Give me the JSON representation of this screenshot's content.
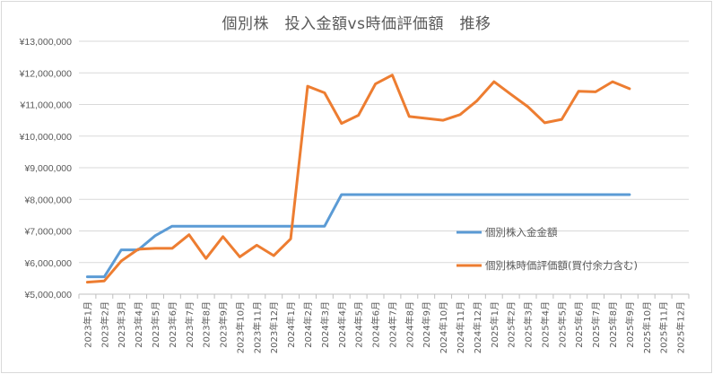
{
  "chart": {
    "title": "個別株　投入金額vs時価評価額　推移"
  },
  "chart_data": {
    "type": "line",
    "title": "個別株　投入金額vs時価評価額　推移",
    "xlabel": "",
    "ylabel": "",
    "ylim": [
      5000000,
      13000000
    ],
    "y_ticks": [
      "¥5,000,000",
      "¥6,000,000",
      "¥7,000,000",
      "¥8,000,000",
      "¥9,000,000",
      "¥10,000,000",
      "¥11,000,000",
      "¥12,000,000",
      "¥13,000,000"
    ],
    "grid": true,
    "legend_position": "inside-right",
    "categories": [
      "2023年1月",
      "2023年2月",
      "2023年3月",
      "2023年4月",
      "2023年5月",
      "2023年6月",
      "2023年7月",
      "2023年8月",
      "2023年9月",
      "2023年10月",
      "2023年11月",
      "2023年12月",
      "2024年1月",
      "2024年2月",
      "2024年3月",
      "2024年4月",
      "2024年5月",
      "2024年6月",
      "2024年7月",
      "2024年8月",
      "2024年9月",
      "2024年10月",
      "2024年11月",
      "2024年12月",
      "2025年1月",
      "2025年2月",
      "2025年3月",
      "2025年4月",
      "2025年5月",
      "2025年6月",
      "2025年7月",
      "2025年8月",
      "2025年9月",
      "2025年10月",
      "2025年11月",
      "2025年12月"
    ],
    "series": [
      {
        "name": "個別株入金金額",
        "color": "#5b9bd5",
        "values": [
          5550000,
          5550000,
          6400000,
          6400000,
          6850000,
          7150000,
          7150000,
          7150000,
          7150000,
          7150000,
          7150000,
          7150000,
          7150000,
          7150000,
          7150000,
          8150000,
          8150000,
          8150000,
          8150000,
          8150000,
          8150000,
          8150000,
          8150000,
          8150000,
          8150000,
          8150000,
          8150000,
          8150000,
          8150000,
          8150000,
          8150000,
          8150000,
          8150000,
          null,
          null,
          null
        ]
      },
      {
        "name": "個別株時価評価額(買付余力含む)",
        "color": "#ed7d31",
        "values": [
          5380000,
          5420000,
          6050000,
          6420000,
          6450000,
          6450000,
          6880000,
          6130000,
          6820000,
          6180000,
          6550000,
          6220000,
          6750000,
          11580000,
          11370000,
          10400000,
          10660000,
          11650000,
          11930000,
          10620000,
          10560000,
          10500000,
          10680000,
          11120000,
          11720000,
          11320000,
          10930000,
          10420000,
          10530000,
          11420000,
          11400000,
          11720000,
          11500000,
          null,
          null,
          null
        ]
      }
    ]
  }
}
